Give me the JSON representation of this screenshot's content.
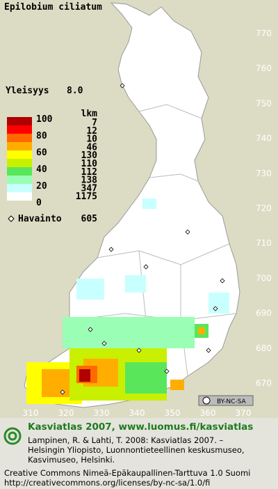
{
  "header": {
    "title": "Epilobium ciliatum"
  },
  "frequency": {
    "label": "Yleisyys",
    "value": "8.0"
  },
  "legend": {
    "scale_labels": [
      100,
      80,
      60,
      40,
      20,
      0
    ],
    "count_header": "lkm",
    "counts": [
      7,
      12,
      10,
      46,
      130,
      110,
      112,
      138,
      347,
      1175
    ],
    "colors": [
      "#b00000",
      "#ff0000",
      "#ff6a00",
      "#ffae00",
      "#ffff00",
      "#c8f000",
      "#5ae65a",
      "#9affb4",
      "#c8ffff",
      "#ffffff"
    ]
  },
  "observations": {
    "label": "Havainto",
    "count": 605
  },
  "grid": {
    "north_labels": [
      770,
      760,
      750,
      740,
      730,
      720,
      710,
      700,
      690,
      680,
      670
    ],
    "east_labels": [
      310,
      320,
      330,
      340,
      350,
      360,
      370
    ]
  },
  "badge": "BY-NC-SA",
  "footer": {
    "heading": "Kasviatlas 2007, www.luomus.fi/kasviatlas",
    "citation": [
      "Lampinen, R. & Lahti, T. 2008: Kasviatlas 2007. –",
      "Helsingin Yliopisto, Luonnontieteellinen keskusmuseo,",
      "Kasvimuseo, Helsinki."
    ],
    "license": [
      "Creative Commons Nimeä-Epäkaupallinen-Tarttuva 1.0 Suomi",
      "http://creativecommons.org/licenses/by-nc-sa/1.0/fi"
    ]
  }
}
